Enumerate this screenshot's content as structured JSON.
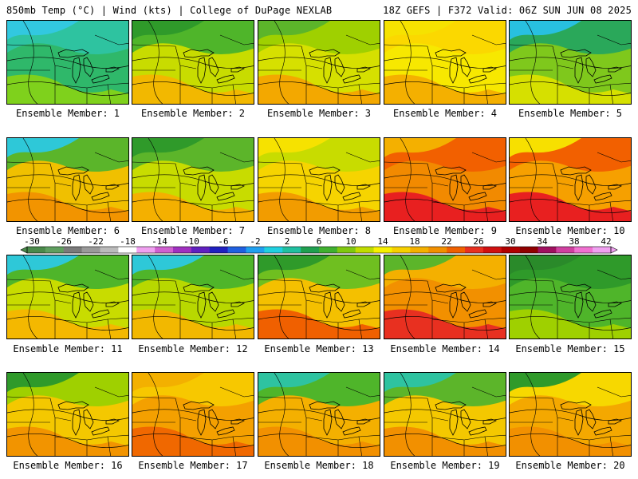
{
  "header": {
    "left": "850mb Temp (°C) | Wind (kts) | College of DuPage NEXLAB",
    "right": "18Z GEFS | F372 Valid: 06Z SUN JUN 08 2025"
  },
  "members": [
    {
      "label": "Ensemble Member: 1",
      "base": "#2fb86a",
      "hot": "#7fd11c",
      "warm": "#2ec3a0",
      "cool": "#32c8e0"
    },
    {
      "label": "Ensemble Member: 2",
      "base": "#c8dc00",
      "hot": "#f2b800",
      "warm": "#4fb52a",
      "cool": "#2f9a2a"
    },
    {
      "label": "Ensemble Member: 3",
      "base": "#d6e000",
      "hot": "#f3a800",
      "warm": "#9fd000",
      "cool": "#5cb52a"
    },
    {
      "label": "Ensemble Member: 4",
      "base": "#f7e800",
      "hot": "#f4b000",
      "warm": "#fbd800",
      "cool": "#f6e200"
    },
    {
      "label": "Ensemble Member: 5",
      "base": "#7fc81c",
      "hot": "#d6e000",
      "warm": "#2aa85a",
      "cool": "#28c0e0"
    },
    {
      "label": "Ensemble Member: 6",
      "base": "#f0c000",
      "hot": "#f29400",
      "warm": "#5bb52a",
      "cool": "#2ec8d8"
    },
    {
      "label": "Ensemble Member: 7",
      "base": "#c8dc00",
      "hot": "#f4b000",
      "warm": "#5cb52a",
      "cool": "#2f9a2a"
    },
    {
      "label": "Ensemble Member: 8",
      "base": "#f6d400",
      "hot": "#f29c00",
      "warm": "#c8dc00",
      "cool": "#f6e200"
    },
    {
      "label": "Ensemble Member: 9",
      "base": "#f28a00",
      "hot": "#e82020",
      "warm": "#f26000",
      "cool": "#f4b000"
    },
    {
      "label": "Ensemble Member: 10",
      "base": "#f6a000",
      "hot": "#e82020",
      "warm": "#f26000",
      "cool": "#f7e000"
    },
    {
      "label": "Ensemble Member: 11",
      "base": "#c8dc00",
      "hot": "#f4b800",
      "warm": "#4fb52a",
      "cool": "#2ec8d8"
    },
    {
      "label": "Ensemble Member: 12",
      "base": "#b8d800",
      "hot": "#f2b800",
      "warm": "#4fb52a",
      "cool": "#2ec8d8"
    },
    {
      "label": "Ensemble Member: 13",
      "base": "#f4c000",
      "hot": "#f06000",
      "warm": "#6fbf20",
      "cool": "#2f9a2a"
    },
    {
      "label": "Ensemble Member: 14",
      "base": "#f29000",
      "hot": "#e83020",
      "warm": "#f4b000",
      "cool": "#5cb52a"
    },
    {
      "label": "Ensemble Member: 15",
      "base": "#4fb52a",
      "hot": "#9fd000",
      "warm": "#2f9a2a",
      "cool": "#2a8a2a"
    },
    {
      "label": "Ensemble Member: 16",
      "base": "#f4c800",
      "hot": "#f29400",
      "warm": "#9fd000",
      "cool": "#2f9a2a"
    },
    {
      "label": "Ensemble Member: 17",
      "base": "#f4a000",
      "hot": "#f06800",
      "warm": "#f7c800",
      "cool": "#f3b000"
    },
    {
      "label": "Ensemble Member: 18",
      "base": "#f4b000",
      "hot": "#f29000",
      "warm": "#4fb52a",
      "cool": "#2ec3a0"
    },
    {
      "label": "Ensemble Member: 19",
      "base": "#f4c800",
      "hot": "#f29000",
      "warm": "#5cb52a",
      "cool": "#2ec3a0"
    },
    {
      "label": "Ensemble Member: 20",
      "base": "#f4a800",
      "hot": "#f29000",
      "warm": "#f7d800",
      "cool": "#2f9a2a"
    }
  ],
  "colorbar": {
    "labels": [
      "-30",
      "-26",
      "-22",
      "-18",
      "-14",
      "-10",
      "-6",
      "-2",
      "2",
      "6",
      "10",
      "14",
      "18",
      "22",
      "26",
      "30",
      "34",
      "38",
      "42"
    ],
    "colors": [
      "#4a8a4a",
      "#5f9f5f",
      "#7a7a7a",
      "#9a9a9a",
      "#bbbbbb",
      "#ffffff",
      "#f0a0f0",
      "#d060d0",
      "#a030c0",
      "#6020c0",
      "#2020c0",
      "#2060e0",
      "#20a0f0",
      "#20d0e0",
      "#20c0a0",
      "#20a050",
      "#40b030",
      "#80c810",
      "#c0dc00",
      "#f7f000",
      "#f7d000",
      "#f4b000",
      "#f29000",
      "#f06000",
      "#e83020",
      "#d01010",
      "#b00000",
      "#900000",
      "#a01060",
      "#d040a0",
      "#f070d0",
      "#f0a0f0"
    ]
  }
}
